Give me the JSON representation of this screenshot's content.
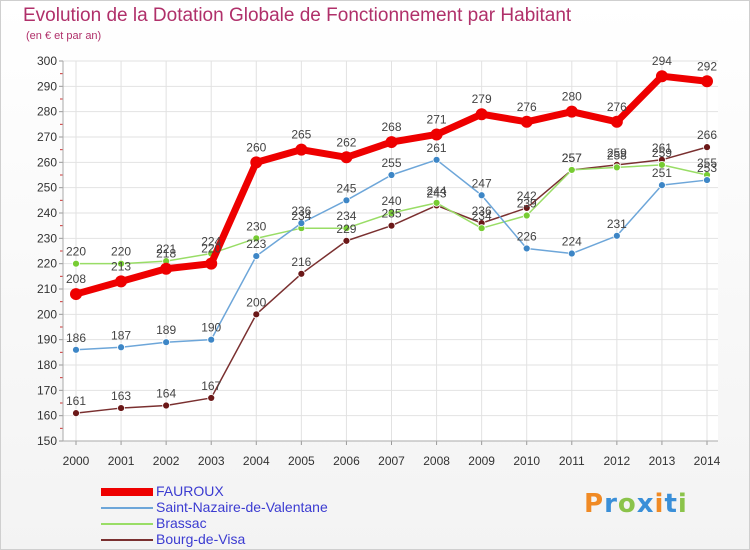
{
  "header": {
    "title": "Evolution de la Dotation Globale de Fonctionnement par Habitant",
    "subtitle": "(en € et par an)"
  },
  "logo": {
    "text": "Proxiti",
    "letters": [
      "P",
      "r",
      "o",
      "x",
      "i",
      "t",
      "i"
    ],
    "colors": [
      "#f08a24",
      "#3a8fd8",
      "#8bc34a",
      "#3a8fd8",
      "#f08a24",
      "#3a8fd8",
      "#8bc34a"
    ]
  },
  "chart_data": {
    "type": "line",
    "title": "Evolution de la Dotation Globale de Fonctionnement par Habitant",
    "subtitle": "(en € et par an)",
    "xlabel": "",
    "ylabel": "",
    "x": [
      "2000",
      "2001",
      "2002",
      "2003",
      "2004",
      "2005",
      "2006",
      "2007",
      "2008",
      "2009",
      "2010",
      "2011",
      "2012",
      "2013",
      "2014"
    ],
    "ylim": [
      150,
      300
    ],
    "ytick_step": 10,
    "grid": true,
    "legend_position": "bottom-left",
    "series": [
      {
        "name": "FAUROUX",
        "color": "#ee0000",
        "marker_color": "#ee0000",
        "width": 7,
        "marker_r": 6,
        "values": [
          208,
          213,
          218,
          220,
          260,
          265,
          262,
          268,
          271,
          279,
          276,
          280,
          276,
          294,
          292
        ]
      },
      {
        "name": "Saint-Nazaire-de-Valentane",
        "color": "#6da6d9",
        "marker_color": "#3d86c6",
        "width": 1.5,
        "marker_r": 3.5,
        "values": [
          186,
          187,
          189,
          190,
          223,
          236,
          245,
          255,
          261,
          247,
          226,
          224,
          231,
          251,
          253
        ]
      },
      {
        "name": "Brassac",
        "color": "#99dd66",
        "marker_color": "#77cc33",
        "width": 1.5,
        "marker_r": 3.5,
        "values": [
          220,
          220,
          221,
          224,
          230,
          234,
          234,
          240,
          244,
          234,
          239,
          257,
          258,
          259,
          255
        ]
      },
      {
        "name": "Bourg-de-Visa",
        "color": "#7a3030",
        "marker_color": "#6b1818",
        "width": 1.5,
        "marker_r": 3.5,
        "values": [
          161,
          163,
          164,
          167,
          200,
          216,
          229,
          235,
          243,
          236,
          242,
          257,
          259,
          261,
          266
        ]
      }
    ]
  }
}
